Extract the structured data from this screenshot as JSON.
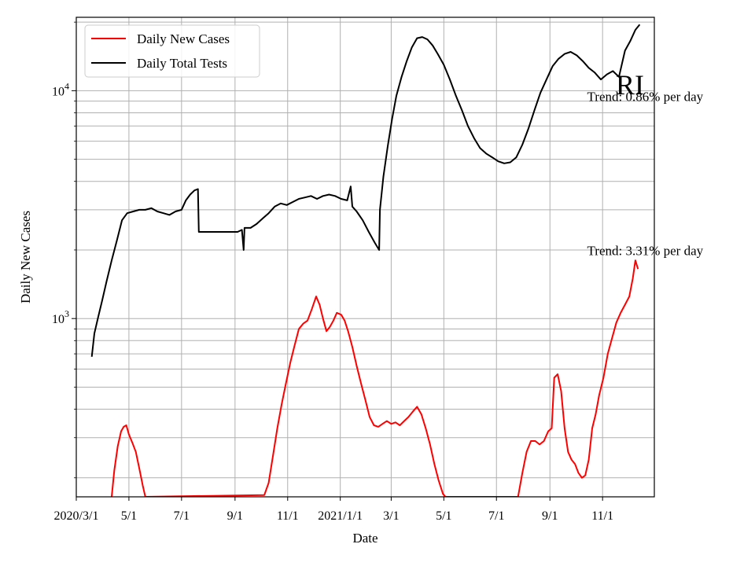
{
  "chart_data": {
    "type": "line",
    "title": "RI",
    "xlabel": "Date",
    "ylabel": "Daily New Cases",
    "yscale": "log",
    "ylim": [
      165,
      21000
    ],
    "xlim": [
      "2020-03-01",
      "2021-12-31"
    ],
    "grid": true,
    "legend_position": "top-left",
    "x_ticks": [
      {
        "date": "2020-03-01",
        "label": "2020/3/1"
      },
      {
        "date": "2020-05-01",
        "label": "5/1"
      },
      {
        "date": "2020-07-01",
        "label": "7/1"
      },
      {
        "date": "2020-09-01",
        "label": "9/1"
      },
      {
        "date": "2020-11-01",
        "label": "11/1"
      },
      {
        "date": "2021-01-01",
        "label": "2021/1/1"
      },
      {
        "date": "2021-03-01",
        "label": "3/1"
      },
      {
        "date": "2021-05-01",
        "label": "5/1"
      },
      {
        "date": "2021-07-01",
        "label": "7/1"
      },
      {
        "date": "2021-09-01",
        "label": "9/1"
      },
      {
        "date": "2021-11-01",
        "label": "11/1"
      }
    ],
    "y_major_ticks": [
      {
        "value": 1000,
        "base": "10",
        "exp": "3"
      },
      {
        "value": 10000,
        "base": "10",
        "exp": "4"
      }
    ],
    "y_minor_ticks": [
      200,
      300,
      400,
      500,
      600,
      700,
      800,
      900,
      2000,
      3000,
      4000,
      5000,
      6000,
      7000,
      8000,
      9000,
      20000
    ],
    "series": [
      {
        "name": "Daily New Cases",
        "color": "#ff0000",
        "points": [
          [
            "2020-04-11",
            165
          ],
          [
            "2020-04-14",
            215
          ],
          [
            "2020-04-18",
            275
          ],
          [
            "2020-04-22",
            320
          ],
          [
            "2020-04-25",
            335
          ],
          [
            "2020-04-28",
            340
          ],
          [
            "2020-05-01",
            310
          ],
          [
            "2020-05-05",
            285
          ],
          [
            "2020-05-09",
            260
          ],
          [
            "2020-05-13",
            220
          ],
          [
            "2020-05-17",
            185
          ],
          [
            "2020-05-20",
            165
          ],
          [
            "2020-10-05",
            168
          ],
          [
            "2020-10-10",
            190
          ],
          [
            "2020-10-15",
            250
          ],
          [
            "2020-10-20",
            330
          ],
          [
            "2020-10-25",
            420
          ],
          [
            "2020-10-30",
            520
          ],
          [
            "2020-11-04",
            640
          ],
          [
            "2020-11-09",
            760
          ],
          [
            "2020-11-14",
            900
          ],
          [
            "2020-11-19",
            950
          ],
          [
            "2020-11-24",
            980
          ],
          [
            "2020-11-29",
            1100
          ],
          [
            "2020-12-04",
            1250
          ],
          [
            "2020-12-08",
            1150
          ],
          [
            "2020-12-12",
            1000
          ],
          [
            "2020-12-16",
            880
          ],
          [
            "2020-12-20",
            920
          ],
          [
            "2020-12-24",
            980
          ],
          [
            "2020-12-28",
            1060
          ],
          [
            "2021-01-02",
            1040
          ],
          [
            "2021-01-06",
            980
          ],
          [
            "2021-01-10",
            880
          ],
          [
            "2021-01-15",
            750
          ],
          [
            "2021-01-20",
            620
          ],
          [
            "2021-01-25",
            520
          ],
          [
            "2021-01-30",
            440
          ],
          [
            "2021-02-04",
            370
          ],
          [
            "2021-02-09",
            340
          ],
          [
            "2021-02-14",
            335
          ],
          [
            "2021-02-19",
            345
          ],
          [
            "2021-02-24",
            355
          ],
          [
            "2021-03-01",
            345
          ],
          [
            "2021-03-06",
            350
          ],
          [
            "2021-03-11",
            340
          ],
          [
            "2021-03-16",
            355
          ],
          [
            "2021-03-21",
            370
          ],
          [
            "2021-03-26",
            390
          ],
          [
            "2021-03-31",
            410
          ],
          [
            "2021-04-05",
            380
          ],
          [
            "2021-04-10",
            330
          ],
          [
            "2021-04-15",
            280
          ],
          [
            "2021-04-20",
            230
          ],
          [
            "2021-04-25",
            195
          ],
          [
            "2021-04-30",
            170
          ],
          [
            "2021-05-03",
            165
          ],
          [
            "2021-07-26",
            165
          ],
          [
            "2021-07-31",
            210
          ],
          [
            "2021-08-05",
            260
          ],
          [
            "2021-08-10",
            290
          ],
          [
            "2021-08-15",
            290
          ],
          [
            "2021-08-20",
            280
          ],
          [
            "2021-08-25",
            290
          ],
          [
            "2021-08-30",
            320
          ],
          [
            "2021-09-03",
            330
          ],
          [
            "2021-09-06",
            550
          ],
          [
            "2021-09-10",
            570
          ],
          [
            "2021-09-14",
            480
          ],
          [
            "2021-09-18",
            330
          ],
          [
            "2021-09-22",
            260
          ],
          [
            "2021-09-26",
            240
          ],
          [
            "2021-09-30",
            230
          ],
          [
            "2021-10-04",
            210
          ],
          [
            "2021-10-08",
            200
          ],
          [
            "2021-10-12",
            205
          ],
          [
            "2021-10-16",
            240
          ],
          [
            "2021-10-20",
            330
          ],
          [
            "2021-10-24",
            380
          ],
          [
            "2021-10-28",
            460
          ],
          [
            "2021-11-02",
            550
          ],
          [
            "2021-11-07",
            700
          ],
          [
            "2021-11-12",
            820
          ],
          [
            "2021-11-17",
            960
          ],
          [
            "2021-11-22",
            1060
          ],
          [
            "2021-11-27",
            1150
          ],
          [
            "2021-12-02",
            1250
          ],
          [
            "2021-12-06",
            1500
          ],
          [
            "2021-12-09",
            1800
          ],
          [
            "2021-12-12",
            1650
          ]
        ]
      },
      {
        "name": "Daily Total Tests",
        "color": "#000000",
        "points": [
          [
            "2020-03-19",
            680
          ],
          [
            "2020-03-22",
            860
          ],
          [
            "2020-03-26",
            1000
          ],
          [
            "2020-03-31",
            1200
          ],
          [
            "2020-04-05",
            1450
          ],
          [
            "2020-04-11",
            1800
          ],
          [
            "2020-04-17",
            2200
          ],
          [
            "2020-04-23",
            2700
          ],
          [
            "2020-04-29",
            2900
          ],
          [
            "2020-05-06",
            2950
          ],
          [
            "2020-05-13",
            3000
          ],
          [
            "2020-05-20",
            3000
          ],
          [
            "2020-05-27",
            3050
          ],
          [
            "2020-06-03",
            2950
          ],
          [
            "2020-06-10",
            2900
          ],
          [
            "2020-06-17",
            2850
          ],
          [
            "2020-06-24",
            2950
          ],
          [
            "2020-07-01",
            3000
          ],
          [
            "2020-07-06",
            3300
          ],
          [
            "2020-07-11",
            3500
          ],
          [
            "2020-07-16",
            3650
          ],
          [
            "2020-07-20",
            3700
          ],
          [
            "2020-07-21",
            2400
          ],
          [
            "2020-08-05",
            2400
          ],
          [
            "2020-08-20",
            2400
          ],
          [
            "2020-09-04",
            2400
          ],
          [
            "2020-09-09",
            2450
          ],
          [
            "2020-09-11",
            2000
          ],
          [
            "2020-09-12",
            2500
          ],
          [
            "2020-09-19",
            2500
          ],
          [
            "2020-09-26",
            2600
          ],
          [
            "2020-10-03",
            2750
          ],
          [
            "2020-10-10",
            2900
          ],
          [
            "2020-10-17",
            3100
          ],
          [
            "2020-10-24",
            3200
          ],
          [
            "2020-10-31",
            3150
          ],
          [
            "2020-11-07",
            3250
          ],
          [
            "2020-11-14",
            3350
          ],
          [
            "2020-11-21",
            3400
          ],
          [
            "2020-11-28",
            3450
          ],
          [
            "2020-12-05",
            3350
          ],
          [
            "2020-12-12",
            3450
          ],
          [
            "2020-12-19",
            3500
          ],
          [
            "2020-12-26",
            3450
          ],
          [
            "2021-01-02",
            3350
          ],
          [
            "2021-01-09",
            3300
          ],
          [
            "2021-01-13",
            3800
          ],
          [
            "2021-01-15",
            3100
          ],
          [
            "2021-01-20",
            2950
          ],
          [
            "2021-01-27",
            2700
          ],
          [
            "2021-02-03",
            2400
          ],
          [
            "2021-02-10",
            2150
          ],
          [
            "2021-02-15",
            2000
          ],
          [
            "2021-02-16",
            3000
          ],
          [
            "2021-02-20",
            4200
          ],
          [
            "2021-02-25",
            5700
          ],
          [
            "2021-03-02",
            7500
          ],
          [
            "2021-03-07",
            9500
          ],
          [
            "2021-03-13",
            11500
          ],
          [
            "2021-03-19",
            13500
          ],
          [
            "2021-03-25",
            15500
          ],
          [
            "2021-03-31",
            17000
          ],
          [
            "2021-04-06",
            17200
          ],
          [
            "2021-04-12",
            16800
          ],
          [
            "2021-04-18",
            15800
          ],
          [
            "2021-04-24",
            14500
          ],
          [
            "2021-05-01",
            13000
          ],
          [
            "2021-05-08",
            11200
          ],
          [
            "2021-05-15",
            9500
          ],
          [
            "2021-05-22",
            8200
          ],
          [
            "2021-05-29",
            7000
          ],
          [
            "2021-06-05",
            6200
          ],
          [
            "2021-06-12",
            5600
          ],
          [
            "2021-06-19",
            5300
          ],
          [
            "2021-06-26",
            5100
          ],
          [
            "2021-07-03",
            4900
          ],
          [
            "2021-07-10",
            4800
          ],
          [
            "2021-07-17",
            4850
          ],
          [
            "2021-07-24",
            5100
          ],
          [
            "2021-07-31",
            5800
          ],
          [
            "2021-08-07",
            6800
          ],
          [
            "2021-08-14",
            8200
          ],
          [
            "2021-08-21",
            9800
          ],
          [
            "2021-08-28",
            11200
          ],
          [
            "2021-09-04",
            12800
          ],
          [
            "2021-09-11",
            13800
          ],
          [
            "2021-09-18",
            14500
          ],
          [
            "2021-09-25",
            14800
          ],
          [
            "2021-10-02",
            14300
          ],
          [
            "2021-10-09",
            13500
          ],
          [
            "2021-10-16",
            12600
          ],
          [
            "2021-10-23",
            12000
          ],
          [
            "2021-10-30",
            11200
          ],
          [
            "2021-11-06",
            11800
          ],
          [
            "2021-11-13",
            12200
          ],
          [
            "2021-11-20",
            11500
          ],
          [
            "2021-11-27",
            15000
          ],
          [
            "2021-12-03",
            16500
          ],
          [
            "2021-12-09",
            18500
          ],
          [
            "2021-12-14",
            19500
          ]
        ]
      }
    ],
    "annotations": [
      {
        "text": "Trend: 0.86% per day",
        "date": "2021-10-25",
        "value": 9000
      },
      {
        "text": "Trend: 3.31% per day",
        "date": "2021-10-25",
        "value": 1900
      }
    ]
  }
}
